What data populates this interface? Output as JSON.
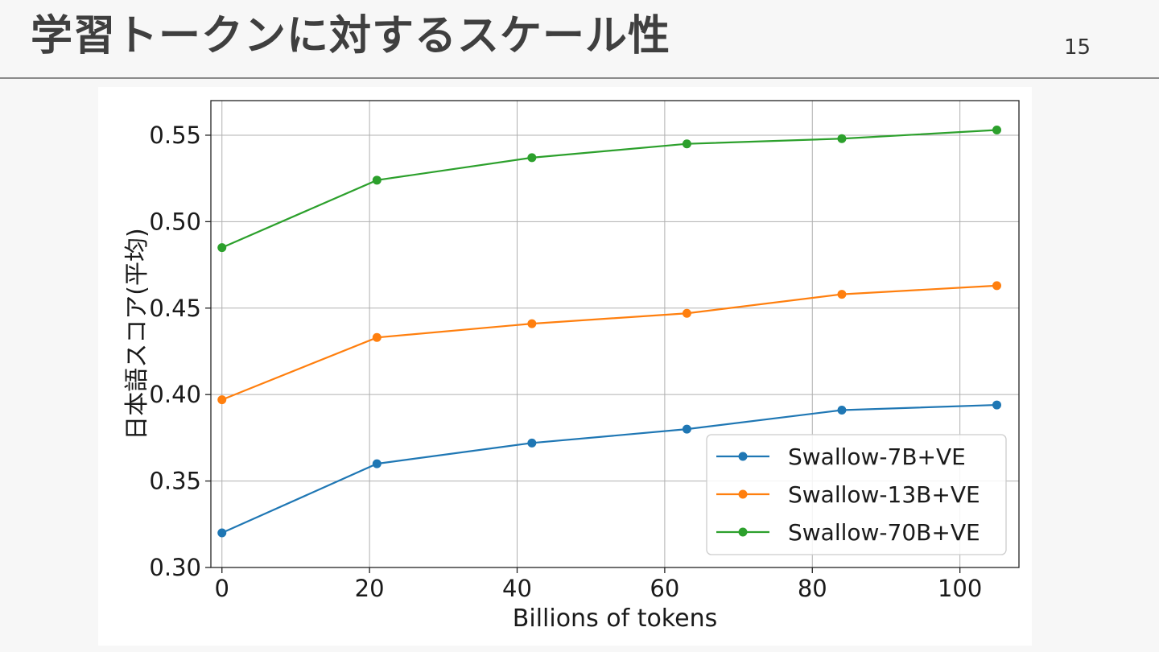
{
  "slide": {
    "title": "学習トークンに対するスケール性",
    "page_number": "15"
  },
  "chart_data": {
    "type": "line",
    "title": "",
    "xlabel": "Billions of tokens",
    "ylabel": "日本語スコア(平均)",
    "x": [
      0,
      21,
      42,
      63,
      84,
      105
    ],
    "xlim": [
      -1.5,
      108
    ],
    "ylim": [
      0.3,
      0.57
    ],
    "xticks": [
      0,
      20,
      40,
      60,
      80,
      100
    ],
    "xtick_labels": [
      "0",
      "20",
      "40",
      "60",
      "80",
      "100"
    ],
    "yticks": [
      0.3,
      0.35,
      0.4,
      0.45,
      0.5,
      0.55
    ],
    "ytick_labels": [
      "0.30",
      "0.35",
      "0.40",
      "0.45",
      "0.50",
      "0.55"
    ],
    "grid": true,
    "legend_position": "lower-right",
    "series": [
      {
        "name": "Swallow-7B+VE",
        "color": "#1f77b4",
        "values": [
          0.32,
          0.36,
          0.372,
          0.38,
          0.391,
          0.394
        ]
      },
      {
        "name": "Swallow-13B+VE",
        "color": "#ff7f0e",
        "values": [
          0.397,
          0.433,
          0.441,
          0.447,
          0.458,
          0.463
        ]
      },
      {
        "name": "Swallow-70B+VE",
        "color": "#2ca02c",
        "values": [
          0.485,
          0.524,
          0.537,
          0.545,
          0.548,
          0.553
        ]
      }
    ]
  }
}
